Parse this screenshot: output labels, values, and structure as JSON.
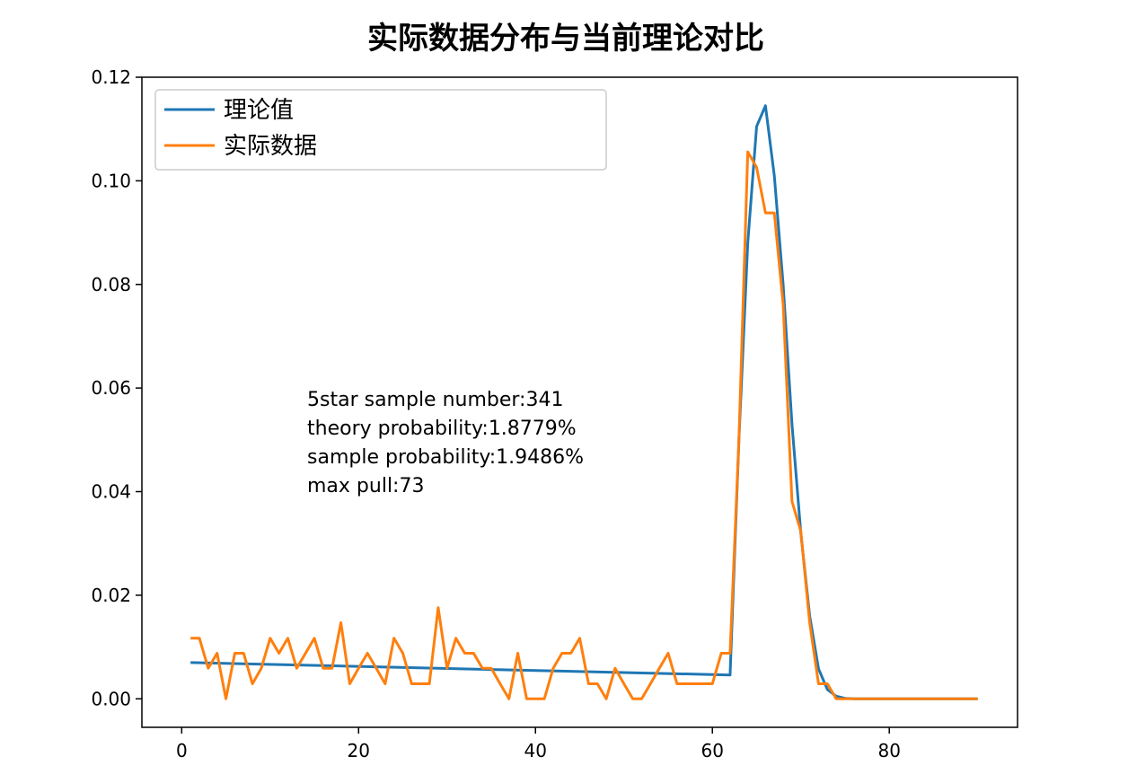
{
  "chart_data": {
    "type": "line",
    "title": "实际数据分布与当前理论对比",
    "xlabel": "",
    "ylabel": "",
    "xlim": [
      -4.5,
      94.5
    ],
    "ylim": [
      -0.0055,
      0.12
    ],
    "xticks": [
      0,
      20,
      40,
      60,
      80
    ],
    "xtick_labels": [
      "0",
      "20",
      "40",
      "60",
      "80"
    ],
    "yticks": [
      0.0,
      0.02,
      0.04,
      0.06,
      0.08,
      0.1,
      0.12
    ],
    "ytick_labels": [
      "0.00",
      "0.02",
      "0.04",
      "0.06",
      "0.08",
      "0.10",
      "0.12"
    ],
    "grid": false,
    "legend_position": "upper-left",
    "series": [
      {
        "name": "理论值",
        "color": "#1f77b4",
        "x": [
          1,
          62,
          63,
          64,
          65,
          66,
          67,
          68,
          69,
          70,
          71,
          72,
          73,
          74,
          75,
          76,
          77,
          90
        ],
        "y": [
          0.007,
          0.0046,
          0.05,
          0.088,
          0.1105,
          0.1145,
          0.101,
          0.08,
          0.053,
          0.032,
          0.016,
          0.0058,
          0.0018,
          0.0005,
          0.0001,
          0.0,
          0.0,
          0.0
        ]
      },
      {
        "name": "实际数据",
        "color": "#ff7f0e",
        "x": [
          1,
          2,
          3,
          4,
          5,
          6,
          7,
          8,
          9,
          10,
          11,
          12,
          13,
          14,
          15,
          16,
          17,
          18,
          19,
          20,
          21,
          22,
          23,
          24,
          25,
          26,
          27,
          28,
          29,
          30,
          31,
          32,
          33,
          34,
          35,
          36,
          37,
          38,
          39,
          40,
          41,
          42,
          43,
          44,
          45,
          46,
          47,
          48,
          49,
          50,
          51,
          52,
          53,
          54,
          55,
          56,
          57,
          58,
          59,
          60,
          61,
          62,
          63,
          64,
          65,
          66,
          67,
          68,
          69,
          70,
          71,
          72,
          73,
          74,
          75,
          76,
          77,
          78,
          79,
          80,
          81,
          82,
          83,
          84,
          85,
          86,
          87,
          88,
          89,
          90
        ],
        "y": [
          0.0117,
          0.0117,
          0.0059,
          0.0088,
          0.0,
          0.0088,
          0.0088,
          0.0029,
          0.0059,
          0.0117,
          0.0088,
          0.0117,
          0.0059,
          0.0088,
          0.0117,
          0.0059,
          0.0059,
          0.0147,
          0.0029,
          0.0059,
          0.0088,
          0.0059,
          0.0029,
          0.0117,
          0.0088,
          0.0029,
          0.0029,
          0.0029,
          0.0176,
          0.0059,
          0.0117,
          0.0088,
          0.0088,
          0.0059,
          0.0059,
          0.0029,
          0.0,
          0.0088,
          0.0,
          0.0,
          0.0,
          0.0059,
          0.0088,
          0.0088,
          0.0117,
          0.0029,
          0.0029,
          0.0,
          0.0059,
          0.0029,
          0.0,
          0.0,
          0.0029,
          0.0059,
          0.0088,
          0.0029,
          0.0029,
          0.0029,
          0.0029,
          0.0029,
          0.0088,
          0.0088,
          0.05,
          0.1056,
          0.1026,
          0.0938,
          0.0938,
          0.0762,
          0.0381,
          0.0323,
          0.0147,
          0.0029,
          0.0029,
          0.0,
          0.0,
          0.0,
          0.0,
          0.0,
          0.0,
          0.0,
          0.0,
          0.0,
          0.0,
          0.0,
          0.0,
          0.0,
          0.0,
          0.0,
          0.0,
          0.0
        ]
      }
    ],
    "annotation": [
      "5star sample number:341",
      "theory probability:1.8779%",
      "sample probability:1.9486%",
      "max pull:73"
    ]
  }
}
